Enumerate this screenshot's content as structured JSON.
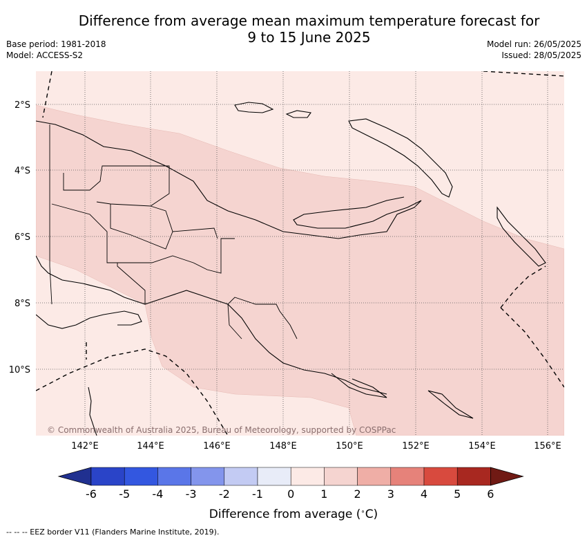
{
  "title_line1": "Difference from average mean maximum temperature forecast for",
  "title_line2": "9 to 15 June 2025",
  "meta_left": {
    "base_period": "Base period: 1981-2018",
    "model": "Model: ACCESS-S2"
  },
  "meta_right": {
    "model_run": "Model run: 26/05/2025",
    "issued": "Issued: 28/05/2025"
  },
  "map": {
    "lon_ticks": [
      "142°E",
      "144°E",
      "146°E",
      "148°E",
      "150°E",
      "152°E",
      "154°E",
      "156°E"
    ],
    "lat_ticks": [
      "2°S",
      "4°S",
      "6°S",
      "8°S",
      "10°S"
    ],
    "copyright": "© Commonwealth of Australia 2025, Bureau of Meteorology, supported by COSPPac",
    "colors": {
      "band_0_1": "#fceae6",
      "band_1_2": "#f5d4d0",
      "band_m1_0": "#e8ecf8"
    }
  },
  "colorbar": {
    "ticks": [
      "-6",
      "-5",
      "-4",
      "-3",
      "-2",
      "-1",
      "0",
      "1",
      "2",
      "3",
      "4",
      "5",
      "6"
    ],
    "colors": [
      "#203090",
      "#2a44c8",
      "#3357e0",
      "#5a76e8",
      "#8395ec",
      "#c3cbf3",
      "#e8ecf8",
      "#fceae6",
      "#f5d4d0",
      "#efaea6",
      "#e6827a",
      "#d84a3e",
      "#a82820",
      "#701a14"
    ],
    "label": "Difference from average (",
    "label_unit": "∘",
    "label_end": "C)"
  },
  "footnote": "--  --  -- EEZ border V11 (Flanders Marine Institute, 2019)."
}
